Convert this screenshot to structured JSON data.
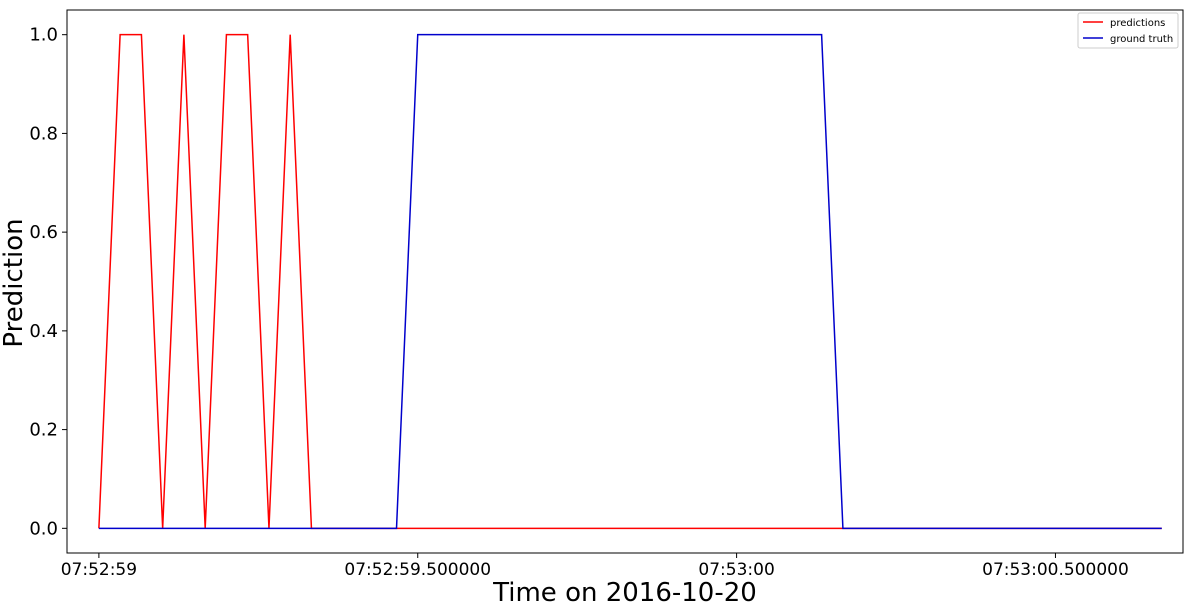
{
  "chart_data": {
    "type": "line",
    "title": "",
    "xlabel": "Time on 2016-10-20",
    "ylabel": "Prediction",
    "xlim": [
      -0.05,
      1.7
    ],
    "ylim": [
      -0.05,
      1.05
    ],
    "x_unit": "seconds since 07:52:59",
    "x_ticks": [
      {
        "value": 0,
        "label": "07:52:59"
      },
      {
        "value": 0.5,
        "label": "07:52:59.500000"
      },
      {
        "value": 1.0,
        "label": "07:53:00"
      },
      {
        "value": 1.5,
        "label": "07:53:00.500000"
      }
    ],
    "y_ticks": [
      {
        "value": 0.0,
        "label": "0.0"
      },
      {
        "value": 0.2,
        "label": "0.2"
      },
      {
        "value": 0.4,
        "label": "0.4"
      },
      {
        "value": 0.6,
        "label": "0.6"
      },
      {
        "value": 0.8,
        "label": "0.8"
      },
      {
        "value": 1.0,
        "label": "1.0"
      }
    ],
    "grid": false,
    "legend_position": "top-right",
    "series": [
      {
        "name": "predictions",
        "color": "#ff0000",
        "points": [
          [
            0.0,
            0
          ],
          [
            0.0333,
            1
          ],
          [
            0.0667,
            1
          ],
          [
            0.1,
            0
          ],
          [
            0.1333,
            1
          ],
          [
            0.1667,
            0
          ],
          [
            0.2,
            1
          ],
          [
            0.2333,
            1
          ],
          [
            0.2667,
            0
          ],
          [
            0.3,
            1
          ],
          [
            0.3333,
            0
          ],
          [
            0.3667,
            0
          ],
          [
            0.4,
            0
          ],
          [
            0.4333,
            0
          ],
          [
            0.4667,
            0
          ],
          [
            0.5,
            0
          ],
          [
            0.5333,
            0
          ],
          [
            0.5667,
            0
          ],
          [
            0.6,
            0
          ],
          [
            0.6333,
            0
          ],
          [
            0.6667,
            0
          ],
          [
            0.7,
            0
          ],
          [
            0.7333,
            0
          ],
          [
            0.7667,
            0
          ],
          [
            0.8,
            0
          ],
          [
            0.8333,
            0
          ],
          [
            0.8667,
            0
          ],
          [
            0.9,
            0
          ],
          [
            0.9333,
            0
          ],
          [
            0.9667,
            0
          ],
          [
            1.0,
            0
          ],
          [
            1.0333,
            0
          ],
          [
            1.0667,
            0
          ],
          [
            1.1,
            0
          ],
          [
            1.1333,
            0
          ],
          [
            1.1667,
            0
          ],
          [
            1.2,
            0
          ],
          [
            1.2333,
            0
          ],
          [
            1.2667,
            0
          ],
          [
            1.3,
            0
          ],
          [
            1.3333,
            0
          ],
          [
            1.3667,
            0
          ],
          [
            1.4,
            0
          ],
          [
            1.4333,
            0
          ],
          [
            1.4667,
            0
          ],
          [
            1.5,
            0
          ],
          [
            1.5333,
            0
          ],
          [
            1.5667,
            0
          ],
          [
            1.6,
            0
          ],
          [
            1.6333,
            0
          ],
          [
            1.6667,
            0
          ]
        ]
      },
      {
        "name": "ground truth",
        "color": "#0000cc",
        "points": [
          [
            0.0,
            0
          ],
          [
            0.0333,
            0
          ],
          [
            0.0667,
            0
          ],
          [
            0.1,
            0
          ],
          [
            0.1333,
            0
          ],
          [
            0.1667,
            0
          ],
          [
            0.2,
            0
          ],
          [
            0.2333,
            0
          ],
          [
            0.2667,
            0
          ],
          [
            0.3,
            0
          ],
          [
            0.3333,
            0
          ],
          [
            0.3667,
            0
          ],
          [
            0.4,
            0
          ],
          [
            0.4333,
            0
          ],
          [
            0.4667,
            0
          ],
          [
            0.5,
            1
          ],
          [
            0.5333,
            1
          ],
          [
            0.5667,
            1
          ],
          [
            0.6,
            1
          ],
          [
            0.6333,
            1
          ],
          [
            0.6667,
            1
          ],
          [
            0.7,
            1
          ],
          [
            0.7333,
            1
          ],
          [
            0.7667,
            1
          ],
          [
            0.8,
            1
          ],
          [
            0.8333,
            1
          ],
          [
            0.8667,
            1
          ],
          [
            0.9,
            1
          ],
          [
            0.9333,
            1
          ],
          [
            0.9667,
            1
          ],
          [
            1.0,
            1
          ],
          [
            1.0333,
            1
          ],
          [
            1.0667,
            1
          ],
          [
            1.1,
            1
          ],
          [
            1.1333,
            1
          ],
          [
            1.1667,
            0
          ],
          [
            1.2,
            0
          ],
          [
            1.2333,
            0
          ],
          [
            1.2667,
            0
          ],
          [
            1.3,
            0
          ],
          [
            1.3333,
            0
          ],
          [
            1.3667,
            0
          ],
          [
            1.4,
            0
          ],
          [
            1.4333,
            0
          ],
          [
            1.4667,
            0
          ],
          [
            1.5,
            0
          ],
          [
            1.5333,
            0
          ],
          [
            1.5667,
            0
          ],
          [
            1.6,
            0
          ],
          [
            1.6333,
            0
          ],
          [
            1.6667,
            0
          ]
        ]
      }
    ]
  }
}
